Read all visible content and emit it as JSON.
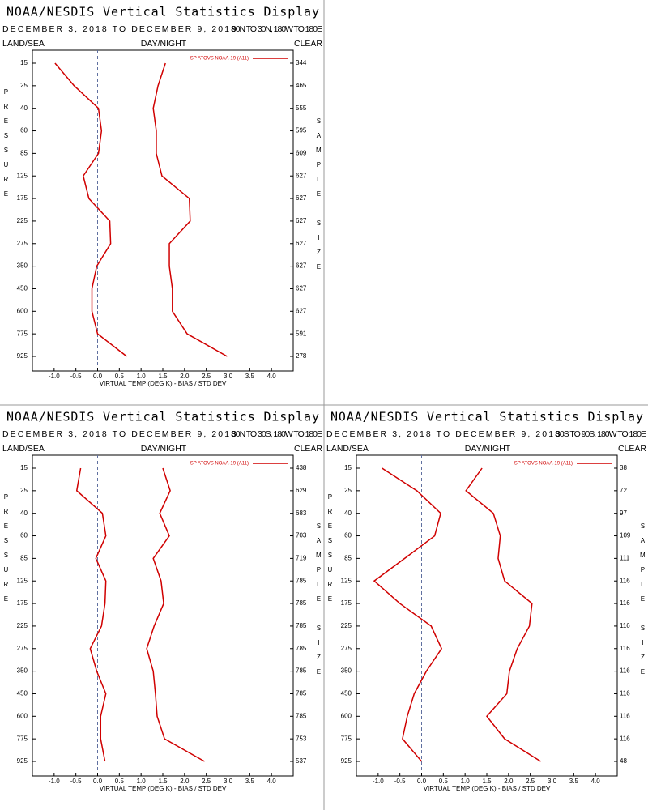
{
  "chart_data": [
    {
      "type": "line",
      "title": "NOAA/NESDIS Vertical Statistics Display",
      "date_range": "DECEMBER 3, 2018 TO DECEMBER 9, 2018",
      "region": "90N TO 30N, 180W TO 180E",
      "land_sea": "LAND/SEA",
      "day_night": "DAY/NIGHT",
      "sky": "CLEAR",
      "y_label": "PRESSURE",
      "y2_label": "SAMPLE SIZE",
      "x_label": "VIRTUAL TEMP (DEG K) - BIAS / STD DEV",
      "categories": [
        15,
        25,
        40,
        60,
        85,
        125,
        175,
        225,
        275,
        350,
        450,
        600,
        775,
        925
      ],
      "series": [
        {
          "name": "SP ATOVS NOAA-19 (A11)",
          "color": "#d00000",
          "bias": [
            -0.98,
            -0.54,
            0.02,
            0.09,
            0.02,
            -0.33,
            -0.2,
            0.28,
            0.3,
            -0.02,
            -0.13,
            -0.13,
            0.0,
            0.67
          ],
          "std_dev": [
            1.56,
            1.39,
            1.28,
            1.35,
            1.35,
            1.48,
            2.11,
            2.13,
            1.65,
            1.65,
            1.72,
            1.72,
            2.06,
            2.98
          ]
        }
      ],
      "sample_size": [
        344,
        465,
        555,
        595,
        609,
        627,
        627,
        627,
        627,
        627,
        627,
        627,
        591,
        278
      ],
      "xlim": [
        -1.5,
        4.5
      ],
      "xticks": [
        {
          "value": -1,
          "label": "-1.0"
        },
        -0.5,
        {
          "value": 0,
          "label": "0.0"
        },
        0.5,
        {
          "value": 1,
          "label": "1.0"
        },
        1.5,
        {
          "value": 2,
          "label": "2.0"
        },
        2.5,
        {
          "value": 3,
          "label": "3.0"
        },
        3.5,
        {
          "value": 4,
          "label": "4.0"
        }
      ]
    },
    {
      "type": "line",
      "title": "NOAA/NESDIS Vertical Statistics Display",
      "date_range": "DECEMBER 3, 2018 TO DECEMBER 9, 2018",
      "region": "30N TO 30S, 180W TO 180E",
      "land_sea": "LAND/SEA",
      "day_night": "DAY/NIGHT",
      "sky": "CLEAR",
      "y_label": "PRESSURE",
      "y2_label": "SAMPLE SIZE",
      "x_label": "VIRTUAL TEMP (DEG K) - BIAS / STD DEV",
      "categories": [
        15,
        25,
        40,
        60,
        85,
        125,
        175,
        225,
        275,
        350,
        450,
        600,
        775,
        925
      ],
      "series": [
        {
          "name": "SP ATOVS NOAA-19 (A11)",
          "color": "#d00000",
          "bias": [
            -0.39,
            -0.48,
            0.11,
            0.19,
            -0.04,
            0.19,
            0.17,
            0.09,
            -0.17,
            -0.02,
            0.19,
            0.07,
            0.07,
            0.17
          ],
          "std_dev": [
            1.5,
            1.67,
            1.43,
            1.65,
            1.28,
            1.46,
            1.52,
            1.3,
            1.13,
            1.28,
            1.33,
            1.37,
            1.54,
            2.46
          ]
        }
      ],
      "sample_size": [
        438,
        629,
        683,
        703,
        719,
        785,
        785,
        785,
        785,
        785,
        785,
        785,
        753,
        537
      ],
      "xlim": [
        -1.5,
        4.5
      ],
      "xticks": [
        {
          "value": -1,
          "label": "-1.0"
        },
        -0.5,
        {
          "value": 0,
          "label": "0.0"
        },
        0.5,
        {
          "value": 1,
          "label": "1.0"
        },
        1.5,
        {
          "value": 2,
          "label": "2.0"
        },
        2.5,
        {
          "value": 3,
          "label": "3.0"
        },
        3.5,
        {
          "value": 4,
          "label": "4.0"
        }
      ]
    },
    {
      "type": "line",
      "title": "NOAA/NESDIS Vertical Statistics Display",
      "date_range": "DECEMBER 3, 2018 TO DECEMBER 9, 2018",
      "region": "30S TO 90S, 180W TO 180E",
      "land_sea": "LAND/SEA",
      "day_night": "DAY/NIGHT",
      "sky": "CLEAR",
      "y_label": "PRESSURE",
      "y2_label": "SAMPLE SIZE",
      "x_label": "VIRTUAL TEMP (DEG K) - BIAS / STD DEV",
      "categories": [
        15,
        25,
        40,
        60,
        85,
        125,
        175,
        225,
        275,
        350,
        450,
        600,
        775,
        925
      ],
      "series": [
        {
          "name": "SP ATOVS NOAA-19 (A11)",
          "color": "#d00000",
          "bias": [
            -0.91,
            -0.11,
            0.44,
            0.3,
            -0.39,
            -1.09,
            -0.5,
            0.22,
            0.46,
            0.11,
            -0.17,
            -0.33,
            -0.44,
            0.0
          ],
          "std_dev": [
            1.39,
            1.02,
            1.65,
            1.81,
            1.76,
            1.91,
            2.54,
            2.48,
            2.2,
            2.02,
            1.96,
            1.5,
            1.91,
            2.74
          ]
        }
      ],
      "sample_size": [
        38,
        72,
        97,
        109,
        111,
        116,
        116,
        116,
        116,
        116,
        116,
        116,
        116,
        48
      ],
      "xlim": [
        -1.5,
        4.5
      ],
      "xticks": [
        {
          "value": -1,
          "label": "-1.0"
        },
        -0.5,
        {
          "value": 0,
          "label": "0.0"
        },
        0.5,
        {
          "value": 1,
          "label": "1.0"
        },
        1.5,
        {
          "value": 2,
          "label": "2.0"
        },
        2.5,
        {
          "value": 3,
          "label": "3.0"
        },
        3.5,
        {
          "value": 4,
          "label": "4.0"
        }
      ]
    }
  ]
}
